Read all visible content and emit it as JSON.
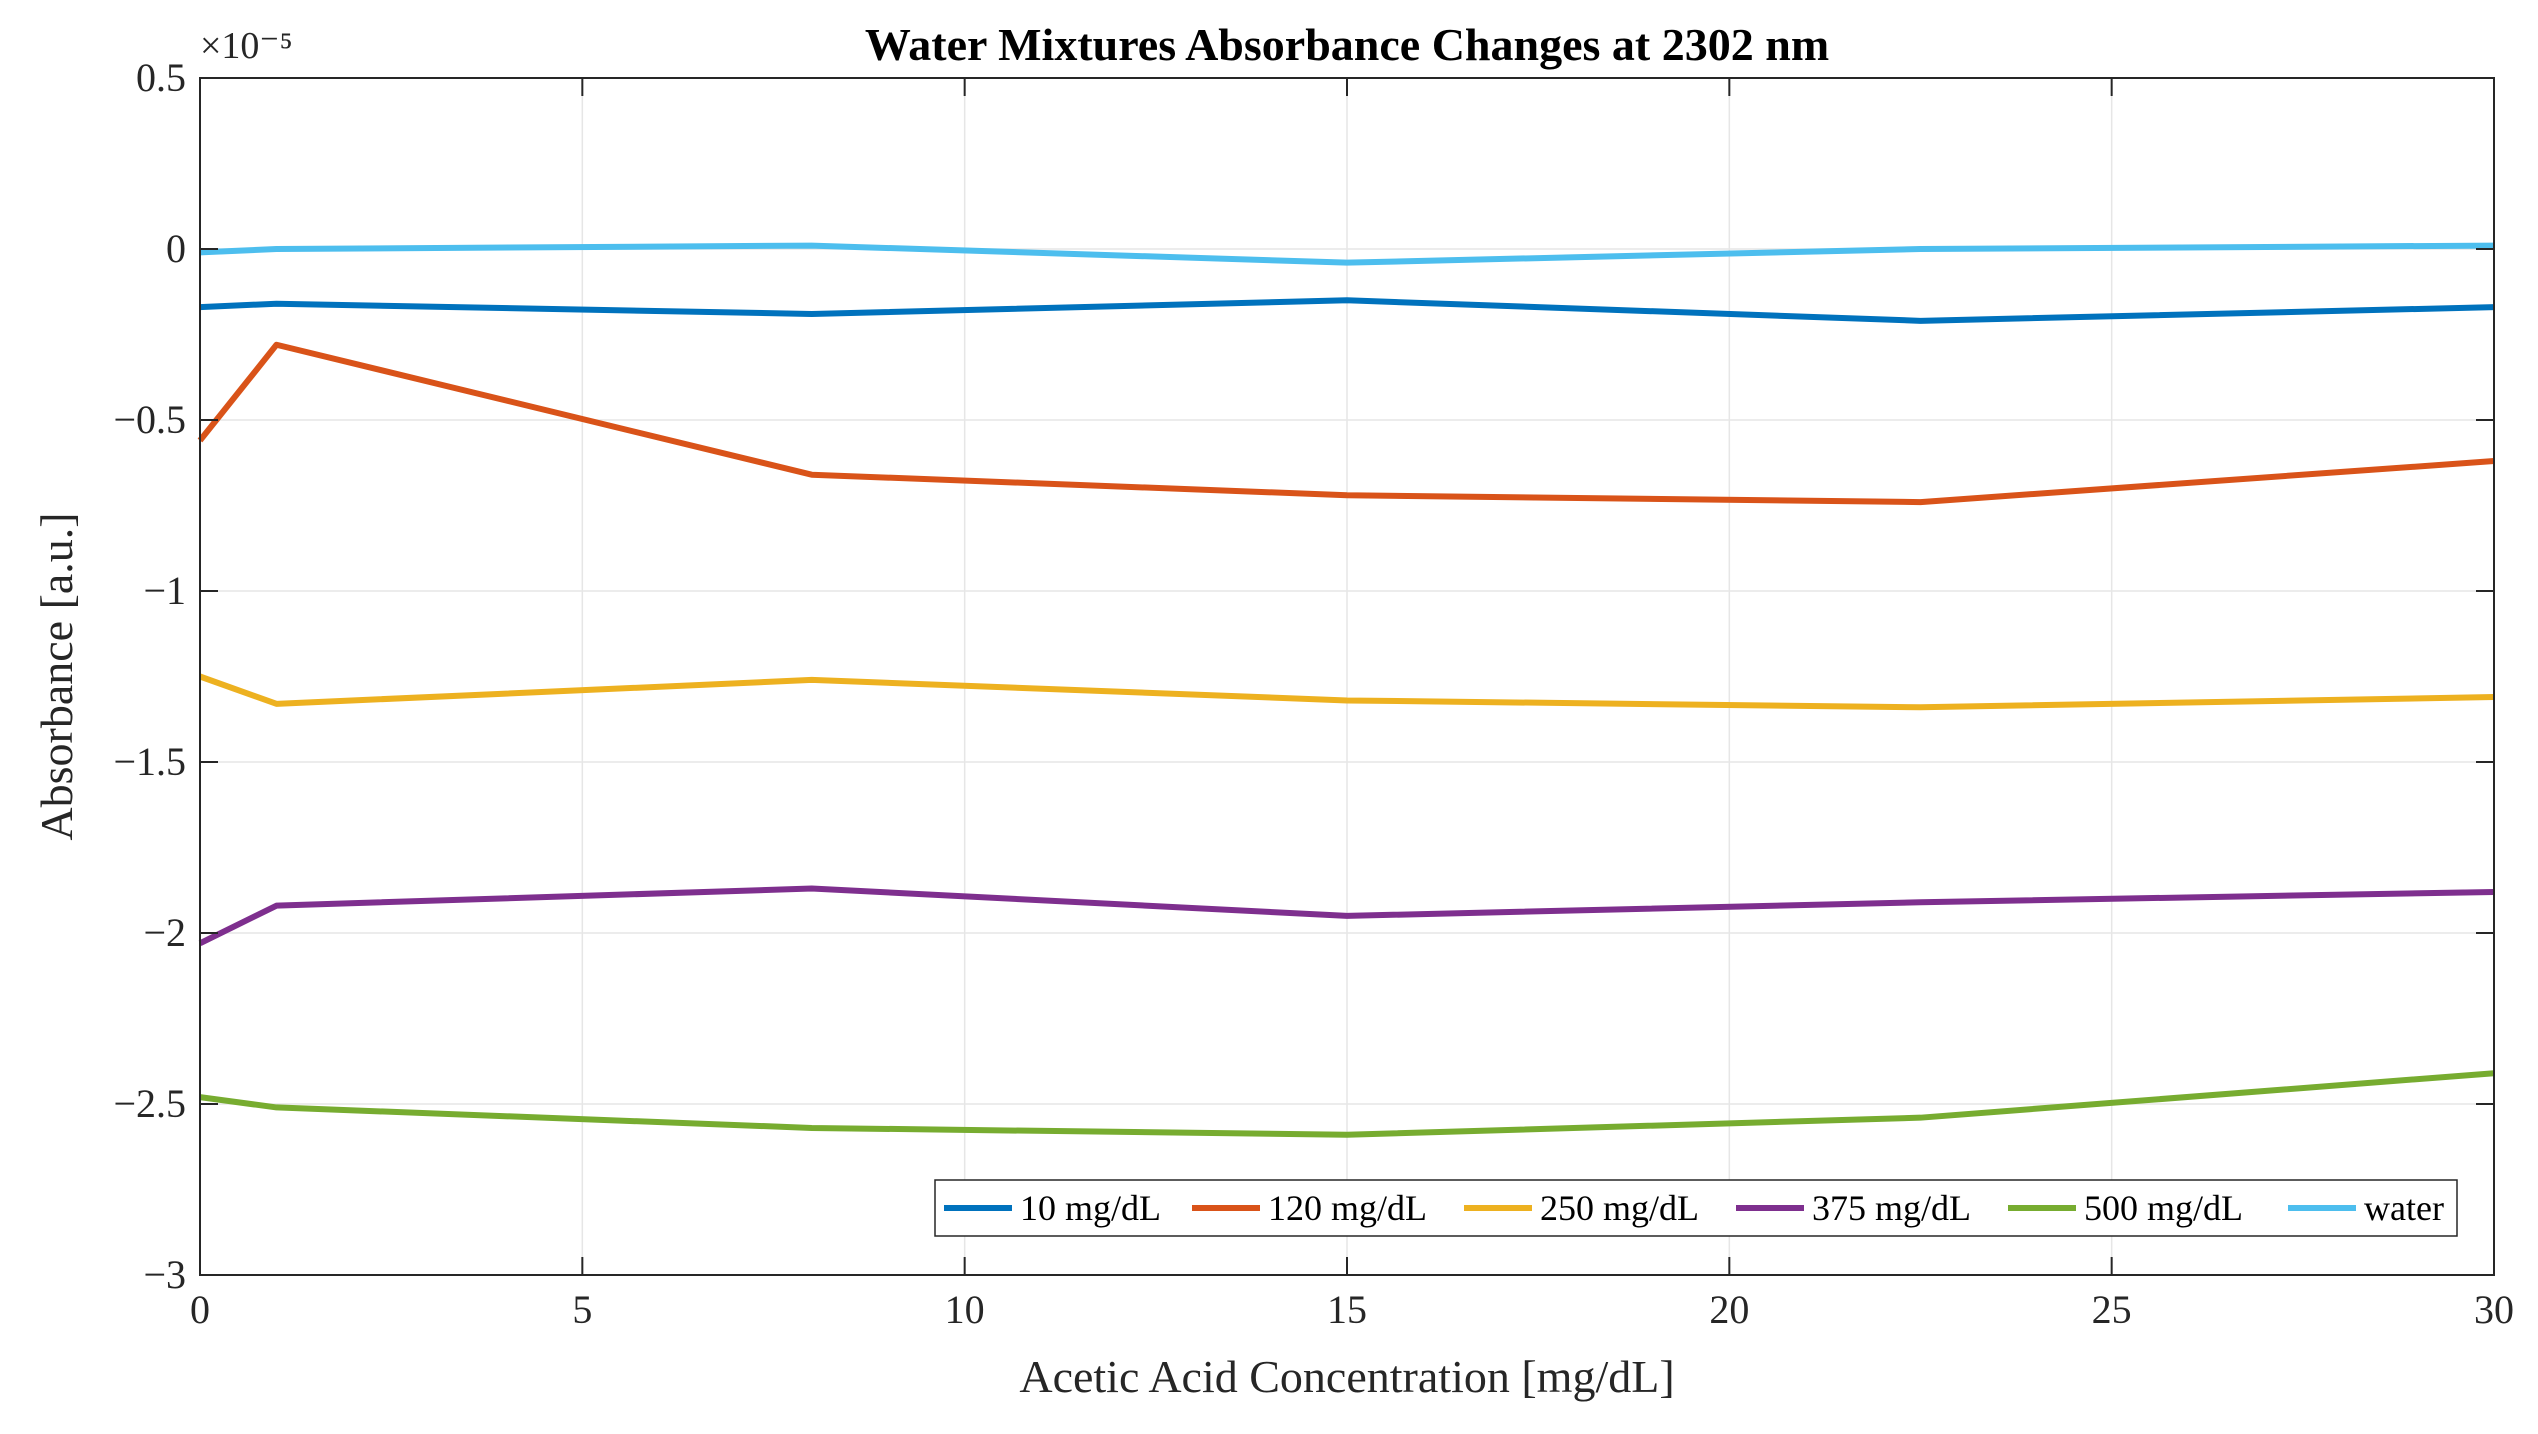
{
  "chart_data": {
    "type": "line",
    "title": "Water Mixtures Absorbance Changes at 2302 nm",
    "xlabel": "Acetic Acid Concentration [mg/dL]",
    "ylabel": "Absorbance [a.u.]",
    "y_exponent": "×10⁻⁵",
    "xlim": [
      0,
      30
    ],
    "ylim": [
      -3,
      0.5
    ],
    "xticks": [
      0,
      5,
      10,
      15,
      20,
      25,
      30
    ],
    "yticks": [
      -3,
      -2.5,
      -2,
      -1.5,
      -1,
      -0.5,
      0,
      0.5
    ],
    "xtick_labels": [
      "0",
      "5",
      "10",
      "15",
      "20",
      "25",
      "30"
    ],
    "ytick_labels": [
      "−3",
      "−2.5",
      "−2",
      "−1.5",
      "−1",
      "−0.5",
      "0",
      "0.5"
    ],
    "grid": true,
    "legend_position": "bottom-right, horizontal",
    "x": [
      0,
      1,
      8,
      15,
      22.5,
      30
    ],
    "series": [
      {
        "name": "10 mg/dL",
        "color": "#0072BD",
        "values": [
          -0.17,
          -0.16,
          -0.19,
          -0.15,
          -0.21,
          -0.17
        ]
      },
      {
        "name": "120 mg/dL",
        "color": "#D95319",
        "values": [
          -0.56,
          -0.28,
          -0.66,
          -0.72,
          -0.74,
          -0.62
        ]
      },
      {
        "name": "250 mg/dL",
        "color": "#EDB120",
        "values": [
          -1.25,
          -1.33,
          -1.26,
          -1.32,
          -1.34,
          -1.31
        ]
      },
      {
        "name": "375 mg/dL",
        "color": "#7E2F8E",
        "values": [
          -2.03,
          -1.92,
          -1.87,
          -1.95,
          -1.91,
          -1.88
        ]
      },
      {
        "name": "500 mg/dL",
        "color": "#77AC30",
        "values": [
          -2.48,
          -2.51,
          -2.57,
          -2.59,
          -2.54,
          -2.41
        ]
      },
      {
        "name": "water",
        "color": "#4DBEEE",
        "values": [
          -0.01,
          0.0,
          0.01,
          -0.04,
          0.0,
          0.01
        ]
      }
    ]
  }
}
